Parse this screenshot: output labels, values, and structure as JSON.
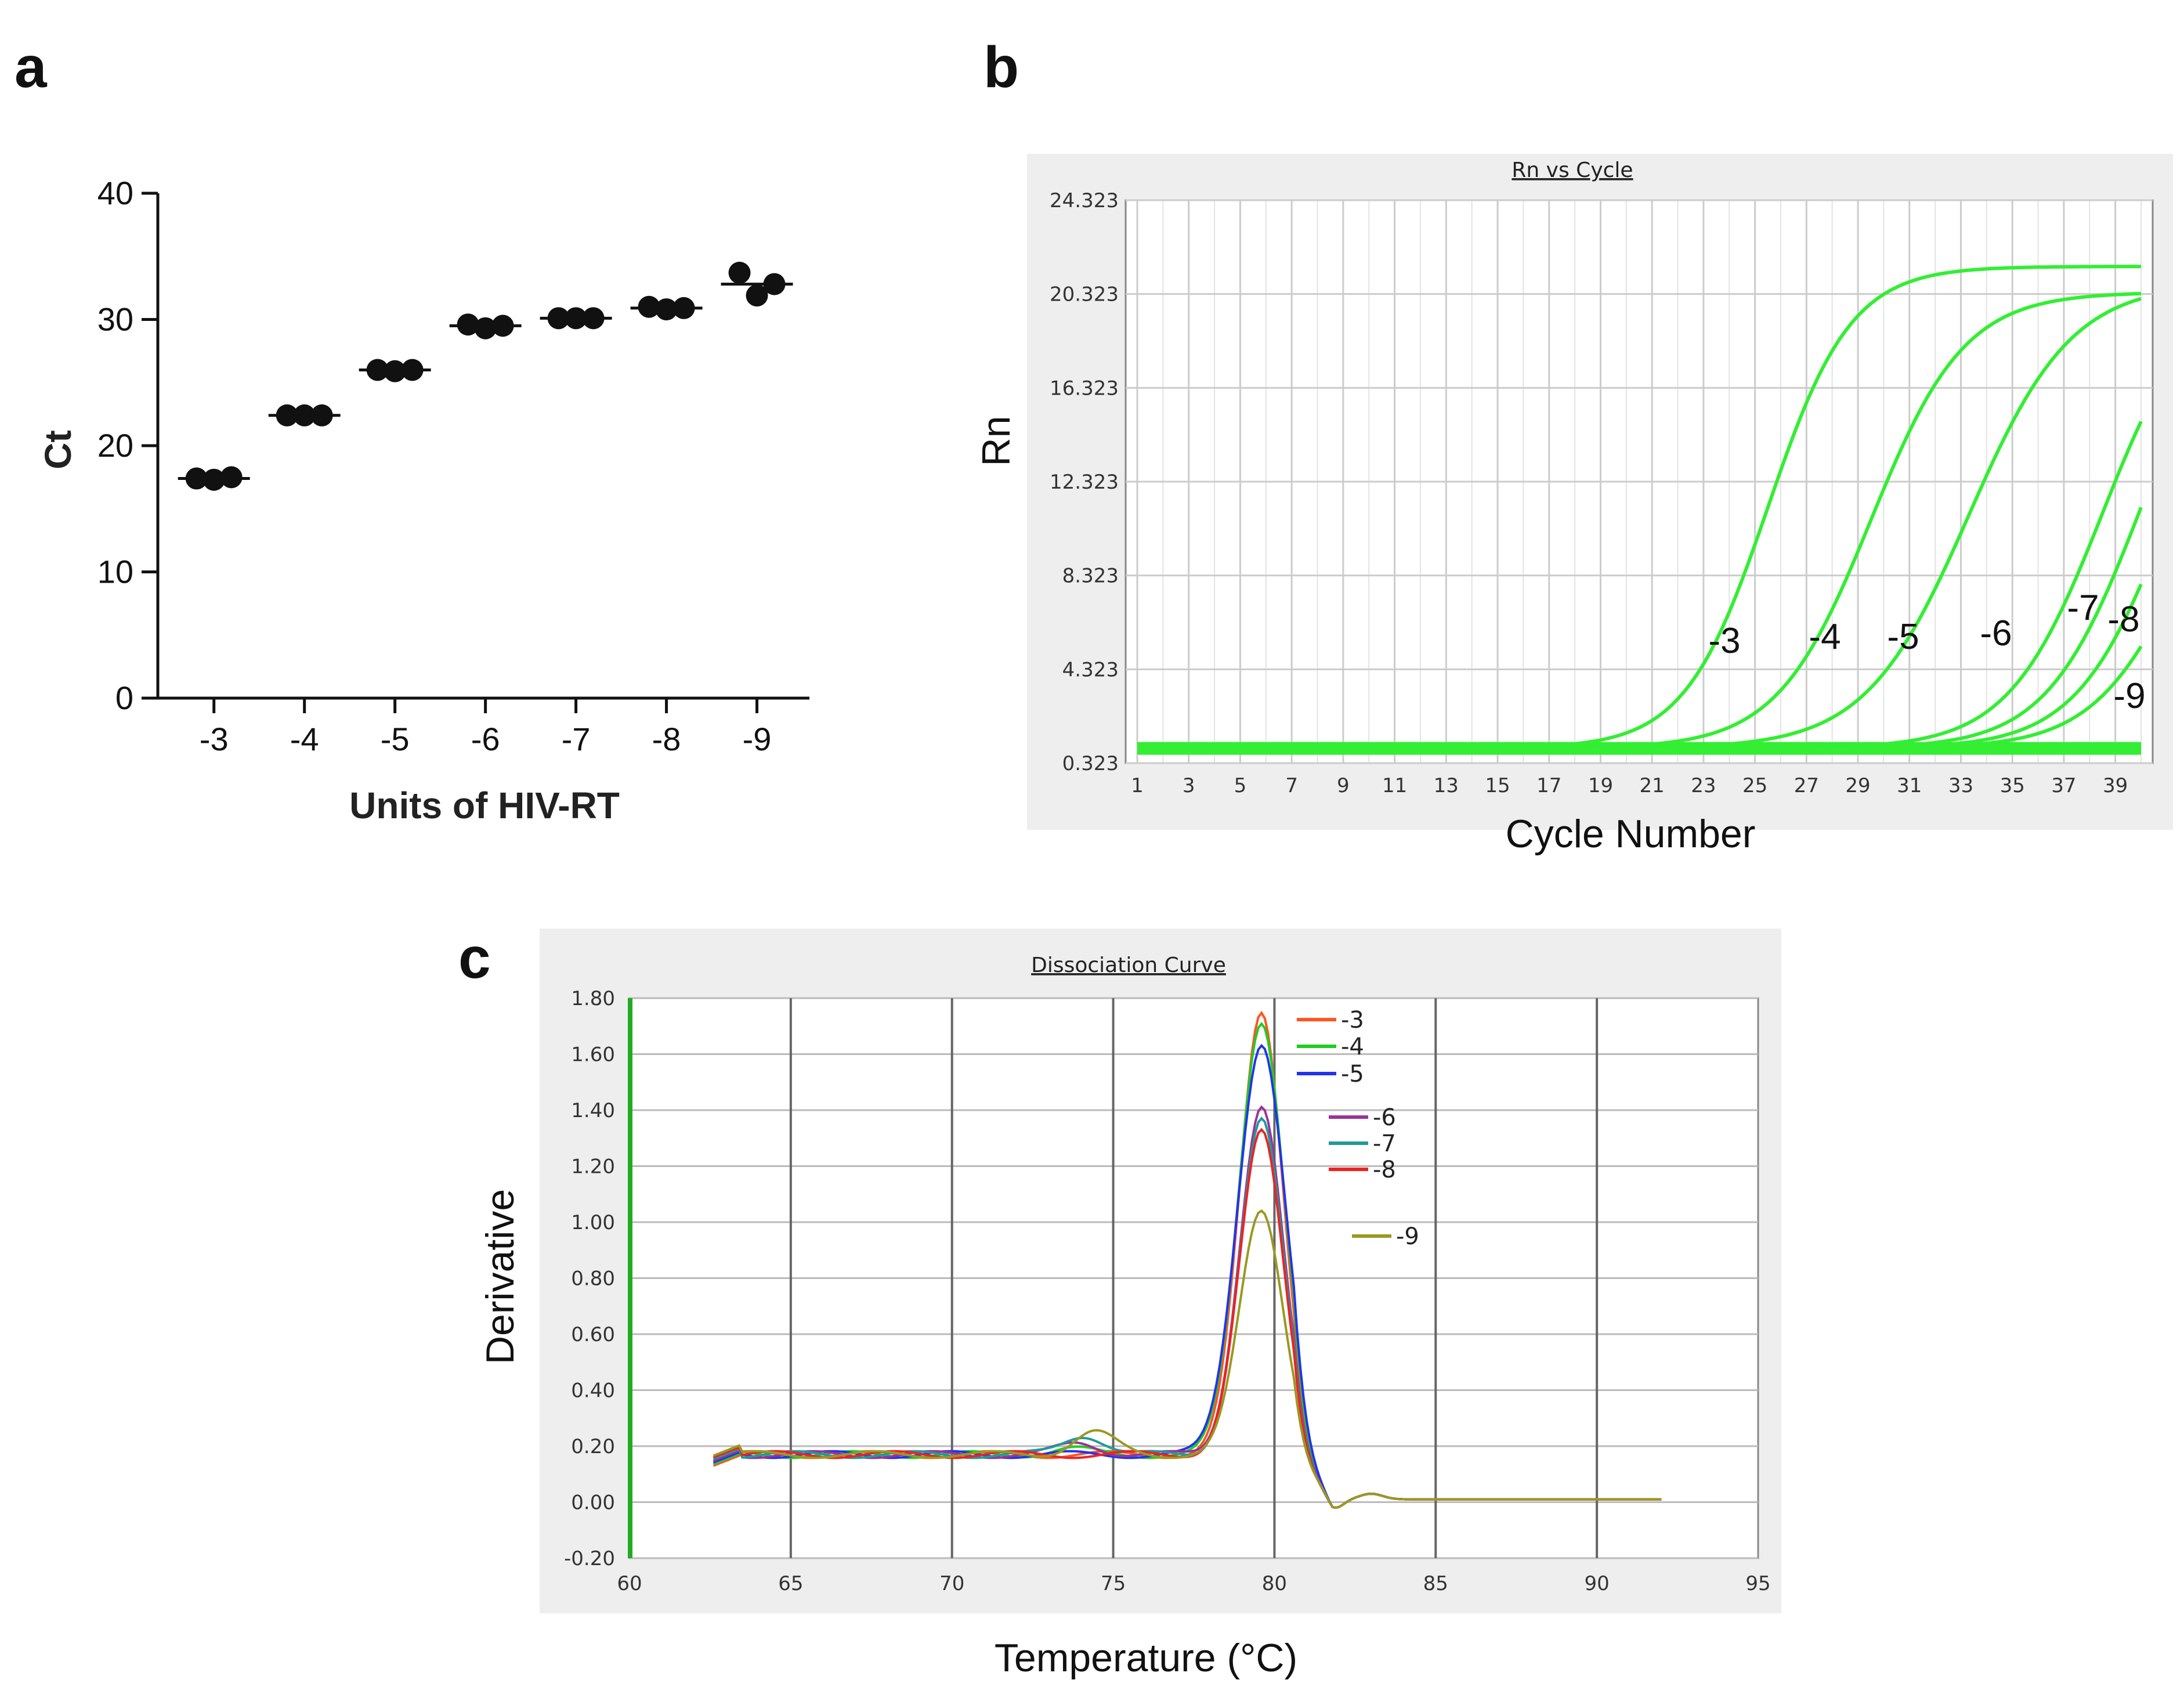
{
  "chart_data": [
    {
      "panel": "a",
      "type": "scatter",
      "title": "",
      "xlabel": "Units of HIV-RT",
      "ylabel": "Ct",
      "categories": [
        "-3",
        "-4",
        "-5",
        "-6",
        "-7",
        "-8",
        "-9"
      ],
      "points": [
        [
          17.4,
          17.3,
          17.5
        ],
        [
          22.4,
          22.4,
          22.4
        ],
        [
          26.0,
          25.9,
          26.0
        ],
        [
          29.6,
          29.3,
          29.5
        ],
        [
          30.1,
          30.1,
          30.1
        ],
        [
          31.0,
          30.8,
          30.9
        ],
        [
          33.7,
          31.9,
          32.8
        ]
      ],
      "means": [
        17.4,
        22.4,
        26.0,
        29.5,
        30.1,
        30.9,
        32.8
      ],
      "ylim": [
        0,
        40
      ],
      "yticks": [
        "0",
        "10",
        "20",
        "30",
        "40"
      ],
      "grid": false
    },
    {
      "panel": "b",
      "type": "line",
      "title": "Rn vs Cycle",
      "xlabel": "Cycle Number",
      "ylabel": "Rn",
      "xlim": [
        1,
        40
      ],
      "ylim": [
        0.323,
        24.323
      ],
      "xticks": [
        "1",
        "3",
        "5",
        "7",
        "9",
        "11",
        "13",
        "15",
        "17",
        "19",
        "21",
        "23",
        "25",
        "27",
        "29",
        "31",
        "33",
        "35",
        "37",
        "39"
      ],
      "yticks": [
        "0.323",
        "4.323",
        "8.323",
        "12.323",
        "16.323",
        "20.323",
        "24.323"
      ],
      "series_color": "#33ee33",
      "baseline": 0.95,
      "series": [
        {
          "name": "-3",
          "midpoint": 25.5,
          "plateau": 21.5,
          "slope": 0.62
        },
        {
          "name": "-4",
          "midpoint": 29.5,
          "plateau": 20.4,
          "slope": 0.55
        },
        {
          "name": "-5",
          "midpoint": 33.3,
          "plateau": 20.8,
          "slope": 0.5
        },
        {
          "name": "-6",
          "midpoint": 38.5,
          "plateau": 21.0,
          "slope": 0.55
        },
        {
          "name": "-7",
          "midpoint": 40.0,
          "plateau": 21.5,
          "slope": 0.55
        },
        {
          "name": "-8",
          "midpoint": 41.2,
          "plateau": 21.5,
          "slope": 0.55
        },
        {
          "name": "-9",
          "midpoint": 41.8,
          "plateau": 17.0,
          "slope": 0.55
        }
      ],
      "annotations": [
        "-3",
        "-4",
        "-5",
        "-6",
        "-7",
        "-8",
        "-9"
      ]
    },
    {
      "panel": "c",
      "type": "line",
      "title": "Dissociation Curve",
      "xlabel": "Temperature (°C)",
      "ylabel": "Derivative",
      "xlim": [
        60,
        95
      ],
      "ylim": [
        -0.2,
        1.8
      ],
      "xticks": [
        "60",
        "65",
        "70",
        "75",
        "80",
        "85",
        "90",
        "95"
      ],
      "yticks": [
        "-0.20",
        "0.00",
        "0.20",
        "0.40",
        "0.60",
        "0.80",
        "1.00",
        "1.20",
        "1.40",
        "1.60",
        "1.80"
      ],
      "series": [
        {
          "name": "-3",
          "color": "#ff5522",
          "peak": 1.75,
          "width": 0.95,
          "bump": 0.0
        },
        {
          "name": "-4",
          "color": "#22cc22",
          "peak": 1.72,
          "width": 1.0,
          "bump": 0.02
        },
        {
          "name": "-5",
          "color": "#2233ee",
          "peak": 1.64,
          "width": 1.05,
          "bump": 0.0
        },
        {
          "name": "-6",
          "color": "#993399",
          "peak": 1.41,
          "width": 0.95,
          "bump": 0.04
        },
        {
          "name": "-7",
          "color": "#229999",
          "peak": 1.36,
          "width": 0.95,
          "bump": 0.07
        },
        {
          "name": "-8",
          "color": "#ee2222",
          "peak": 1.32,
          "width": 0.95,
          "bump": 0.0
        },
        {
          "name": "-9",
          "color": "#999922",
          "peak": 1.04,
          "width": 0.95,
          "bump": 0.08
        }
      ]
    }
  ],
  "labels": {
    "panel_a": "a",
    "panel_b": "b",
    "panel_c": "c"
  }
}
